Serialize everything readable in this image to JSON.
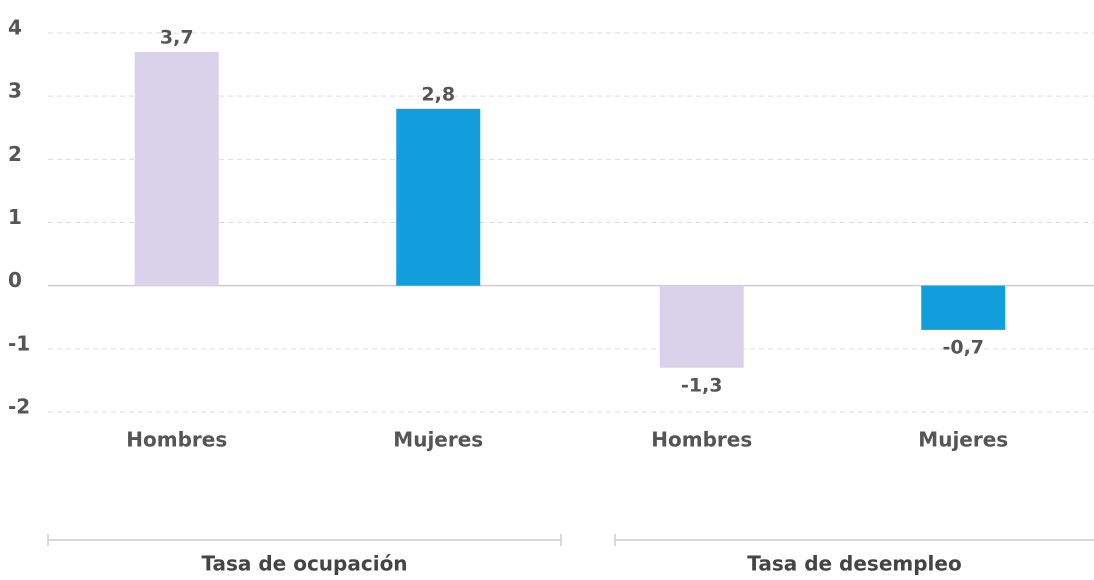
{
  "chart_data": {
    "type": "bar",
    "categories": [
      "Hombres",
      "Mujeres",
      "Hombres",
      "Mujeres"
    ],
    "values": [
      3.7,
      2.8,
      -1.3,
      -0.7
    ],
    "value_labels": [
      "3,7",
      "2,8",
      "-1,3",
      "-0,7"
    ],
    "colors": [
      "#d8d3ea",
      "#129ddc",
      "#d8d3ea",
      "#129ddc"
    ],
    "groups": [
      "Tasa de ocupación",
      "Tasa de desempleo"
    ],
    "ylim": [
      -2,
      4
    ],
    "yticks": [
      -2,
      -1,
      0,
      1,
      2,
      3,
      4
    ],
    "grid": true
  }
}
